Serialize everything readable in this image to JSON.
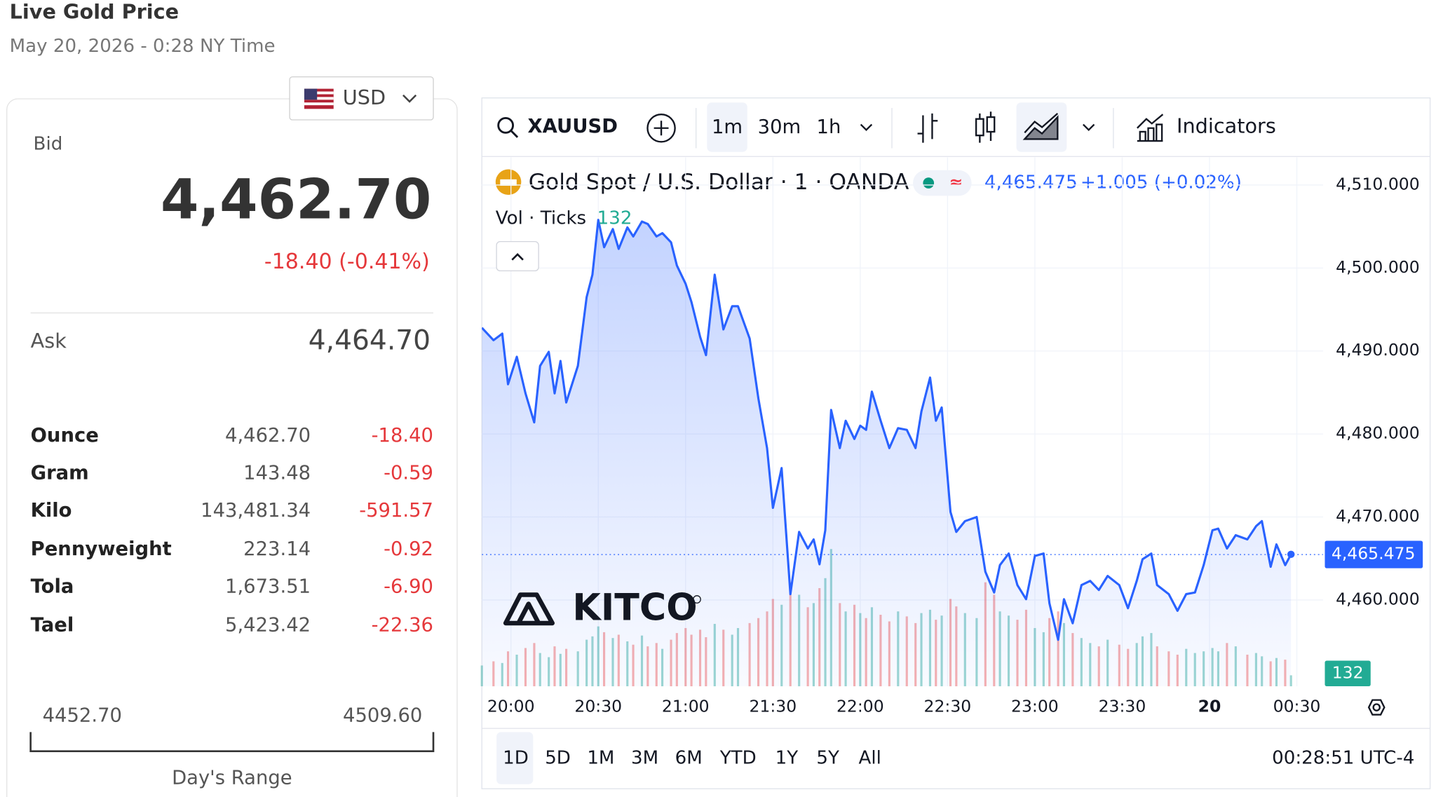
{
  "header": {
    "title": "Live Gold Price",
    "date": "May 20, 2026 - 0:28 NY Time"
  },
  "currency": "USD",
  "bid": {
    "label": "Bid",
    "value": "4,462.70",
    "change": "-18.40 (-0.41%)"
  },
  "ask": {
    "label": "Ask",
    "value": "4,464.70"
  },
  "table": {
    "rows": [
      [
        "Ounce",
        "4,462.70",
        "-18.40"
      ],
      [
        "Gram",
        "143.48",
        "-0.59"
      ],
      [
        "Kilo",
        "143,481.34",
        "-591.57"
      ],
      [
        "Pennyweight",
        "223.14",
        "-0.92"
      ],
      [
        "Tola",
        "1,673.51",
        "-6.90"
      ],
      [
        "Tael",
        "5,423.42",
        "-22.36"
      ]
    ]
  },
  "range": {
    "low": "4452.70",
    "high": "4509.60",
    "label": "Day's Range"
  },
  "toolbar": {
    "symbol": "XAUUSD",
    "intervals": [
      "1m",
      "30m",
      "1h"
    ],
    "indicators": "Indicators"
  },
  "ranges": [
    "1D",
    "5D",
    "1M",
    "3M",
    "6M",
    "YTD",
    "1Y",
    "5Y",
    "All"
  ],
  "clock": "00:28:51 UTC-4",
  "watermark": "KITCO",
  "chart_data": {
    "type": "line",
    "title": "Gold Spot / U.S. Dollar · 1 · OANDA",
    "price_label": "4,465.475",
    "change_label": "+1.005 (+0.02%)",
    "last_price": 4465.475,
    "volume_label": "Vol · Ticks",
    "x": [
      "19:50",
      "19:54",
      "19:57",
      "19:59",
      "20:02",
      "20:05",
      "20:08",
      "20:10",
      "20:13",
      "20:15",
      "20:17",
      "20:19",
      "20:23",
      "20:26",
      "20:28",
      "20:30",
      "20:32",
      "20:35",
      "20:37",
      "20:40",
      "20:42",
      "20:45",
      "20:47",
      "20:50",
      "20:52",
      "20:55",
      "20:57",
      "21:00",
      "21:02",
      "21:05",
      "21:07",
      "21:10",
      "21:13",
      "21:16",
      "21:18",
      "21:22",
      "21:25",
      "21:28",
      "21:30",
      "21:33",
      "21:36",
      "21:39",
      "21:42",
      "21:44",
      "21:46",
      "21:48",
      "21:50",
      "21:53",
      "21:55",
      "21:58",
      "22:00",
      "22:02",
      "22:04",
      "22:07",
      "22:10",
      "22:13",
      "22:16",
      "22:19",
      "22:21",
      "22:24",
      "22:26",
      "22:28",
      "22:31",
      "22:33",
      "22:36",
      "22:40",
      "22:43",
      "22:46",
      "22:48",
      "22:51",
      "22:54",
      "22:57",
      "23:00",
      "23:03",
      "23:05",
      "23:08",
      "23:10",
      "23:13",
      "23:16",
      "23:19",
      "23:22",
      "23:25",
      "23:29",
      "23:32",
      "23:35",
      "23:37",
      "23:40",
      "23:42",
      "23:46",
      "23:49",
      "23:52",
      "23:55",
      "23:58",
      "00:01",
      "00:03",
      "00:06",
      "00:09",
      "00:13",
      "00:16",
      "00:18",
      "00:21",
      "00:23",
      "00:26",
      "00:28"
    ],
    "series": [
      {
        "name": "XAUUSD",
        "color": "#2962ff",
        "values": [
          4492.8,
          4491.3,
          4492.1,
          4486.0,
          4489.3,
          4484.9,
          4481.4,
          4488.2,
          4489.9,
          4484.9,
          4488.8,
          4483.8,
          4488.2,
          4496.5,
          4499.2,
          4505.8,
          4502.5,
          4504.7,
          4502.3,
          4504.9,
          4503.8,
          4505.6,
          4505.3,
          4503.8,
          4504.2,
          4503.1,
          4500.3,
          4498.1,
          4495.9,
          4491.7,
          4489.5,
          4499.2,
          4492.6,
          4495.4,
          4495.4,
          4491.5,
          4484.3,
          4478.3,
          4471.1,
          4475.9,
          4460.7,
          4468.2,
          4466.2,
          4467.3,
          4464.3,
          4468.4,
          4482.9,
          4478.3,
          4481.6,
          4479.4,
          4481.0,
          4480.5,
          4485.1,
          4481.6,
          4478.3,
          4480.7,
          4480.5,
          4478.3,
          4482.7,
          4486.8,
          4481.6,
          4483.2,
          4470.6,
          4468.2,
          4469.5,
          4470.0,
          4463.4,
          4460.9,
          4464.2,
          4465.6,
          4461.8,
          4460.1,
          4465.3,
          4465.6,
          4459.6,
          4455.2,
          4460.1,
          4457.2,
          4461.8,
          4462.3,
          4461.2,
          4462.9,
          4461.8,
          4459.0,
          4462.3,
          4464.9,
          4465.6,
          4461.8,
          4460.7,
          4458.7,
          4460.7,
          4460.9,
          4464.2,
          4468.4,
          4468.6,
          4466.2,
          4467.8,
          4467.3,
          4468.9,
          4469.5,
          4464.0,
          4466.7,
          4464.2,
          4465.5
        ]
      }
    ],
    "volume": [
      250,
      300,
      280,
      420,
      380,
      460,
      520,
      400,
      350,
      480,
      390,
      450,
      420,
      560,
      600,
      720,
      650,
      580,
      620,
      540,
      500,
      610,
      480,
      520,
      450,
      560,
      640,
      700,
      620,
      680,
      590,
      750,
      680,
      620,
      700,
      760,
      820,
      900,
      1050,
      980,
      1250,
      1100,
      950,
      1000,
      1180,
      1300,
      1650,
      1000,
      900,
      980,
      880,
      820,
      950,
      860,
      780,
      900,
      840,
      760,
      880,
      920,
      800,
      850,
      1050,
      960,
      880,
      820,
      1250,
      1100,
      900,
      850,
      800,
      920,
      700,
      650,
      820,
      900,
      760,
      640,
      580,
      520,
      480,
      560,
      500,
      450,
      520,
      600,
      640,
      480,
      420,
      380,
      450,
      400,
      420,
      460,
      420,
      520,
      480,
      380,
      400,
      360,
      300,
      340,
      320,
      132
    ],
    "volume_colors": {
      "up": "#26a69a",
      "down": "#ef5350"
    },
    "xlim": [
      "19:50",
      "00:39"
    ],
    "xticks": [
      "20:00",
      "20:30",
      "21:00",
      "21:30",
      "22:00",
      "22:30",
      "23:00",
      "23:30",
      {
        "value": "00:00",
        "label": "20"
      },
      "00:30"
    ],
    "ylim": [
      4449.6,
      4513
    ],
    "yticks": [
      {
        "value": 4460,
        "label": "4,460.000"
      },
      {
        "value": 4470,
        "label": "4,470.000"
      },
      {
        "value": 4480,
        "label": "4,480.000"
      },
      {
        "value": 4490,
        "label": "4,490.000"
      },
      {
        "value": 4500,
        "label": "4,500.000"
      },
      {
        "value": 4510,
        "label": "4,510.000"
      }
    ],
    "grid": true
  }
}
